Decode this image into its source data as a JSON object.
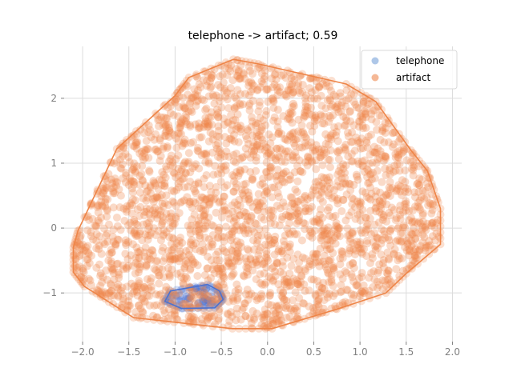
{
  "chart_data": {
    "type": "scatter",
    "title": "telephone -> artifact; 0.59",
    "xlabel": "",
    "ylabel": "",
    "xlim": [
      -2.2,
      2.1
    ],
    "ylim": [
      -1.75,
      2.8
    ],
    "xticks": [
      -2.0,
      -1.5,
      -1.0,
      -0.5,
      0.0,
      0.5,
      1.0,
      1.5,
      2.0
    ],
    "xtick_labels": [
      "−2.0",
      "−1.5",
      "−1.0",
      "−0.5",
      "0.0",
      "0.5",
      "1.0",
      "1.5",
      "2.0"
    ],
    "yticks": [
      -1,
      0,
      1,
      2
    ],
    "ytick_labels": [
      "−1",
      "0",
      "1",
      "2"
    ],
    "grid": true,
    "legend_position": "top-right",
    "series": [
      {
        "name": "telephone",
        "color": "#4c72d0",
        "marker_color": "#aec7e8",
        "hull": [
          [
            -0.65,
            -0.87
          ],
          [
            -0.52,
            -0.97
          ],
          [
            -0.48,
            -1.1
          ],
          [
            -0.57,
            -1.23
          ],
          [
            -0.93,
            -1.24
          ],
          [
            -1.11,
            -1.13
          ],
          [
            -1.05,
            -0.97
          ]
        ]
      },
      {
        "name": "artifact",
        "color": "#ee8548",
        "marker_color": "#f5b896",
        "hull": [
          [
            -0.37,
            2.6
          ],
          [
            -0.1,
            2.53
          ],
          [
            0.85,
            2.22
          ],
          [
            1.17,
            1.95
          ],
          [
            1.55,
            1.2
          ],
          [
            1.73,
            0.88
          ],
          [
            1.87,
            0.3
          ],
          [
            1.87,
            -0.25
          ],
          [
            1.5,
            -0.7
          ],
          [
            1.28,
            -1.0
          ],
          [
            0.75,
            -1.25
          ],
          [
            0.05,
            -1.55
          ],
          [
            -0.38,
            -1.55
          ],
          [
            -1.01,
            -1.45
          ],
          [
            -1.45,
            -1.38
          ],
          [
            -1.98,
            -0.9
          ],
          [
            -2.1,
            -0.68
          ],
          [
            -2.1,
            -0.3
          ],
          [
            -2.05,
            -0.04
          ],
          [
            -1.63,
            1.22
          ],
          [
            -1.0,
            2.04
          ],
          [
            -0.85,
            2.32
          ]
        ]
      }
    ]
  }
}
